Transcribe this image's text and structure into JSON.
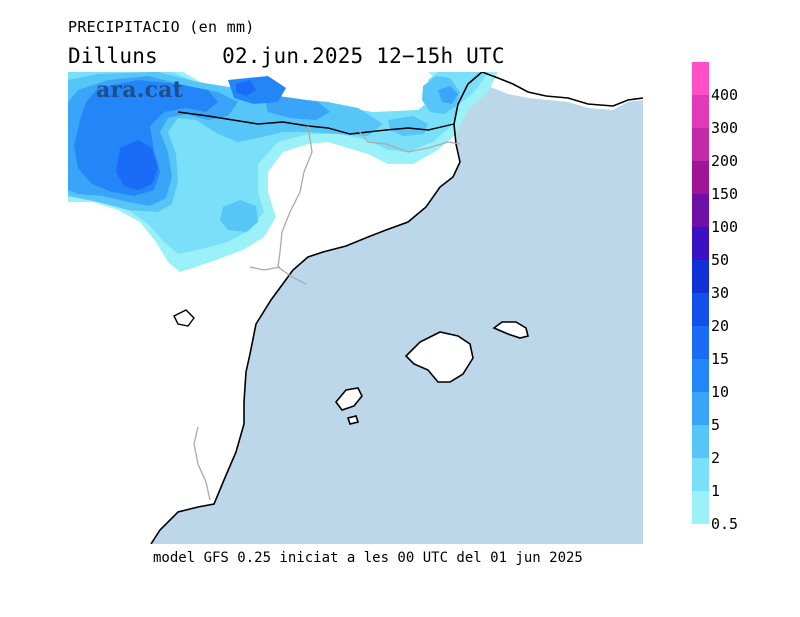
{
  "header": {
    "title": "PRECIPITACIO (en mm)",
    "day": "Dilluns",
    "date": "02.jun.2025",
    "time_range": "12−15h",
    "timezone": "UTC"
  },
  "brand": {
    "logo_text": "ara.cat"
  },
  "footer": {
    "model_info": "model GFS 0.25 iniciat a les 00 UTC del 01 jun 2025"
  },
  "legend": {
    "unit": "mm",
    "levels": [
      {
        "label": "400",
        "color": "#ff4fc7"
      },
      {
        "label": "300",
        "color": "#e03ab8"
      },
      {
        "label": "200",
        "color": "#c22aa8"
      },
      {
        "label": "150",
        "color": "#a01596"
      },
      {
        "label": "100",
        "color": "#6e10a8"
      },
      {
        "label": "50",
        "color": "#3a12c4"
      },
      {
        "label": "30",
        "color": "#1230d8"
      },
      {
        "label": "20",
        "color": "#1250ec"
      },
      {
        "label": "15",
        "color": "#1a6cf6"
      },
      {
        "label": "10",
        "color": "#2386f8"
      },
      {
        "label": "5",
        "color": "#3aa5f8"
      },
      {
        "label": "2",
        "color": "#56c6f8"
      },
      {
        "label": "1",
        "color": "#7adff8"
      },
      {
        "label": "0.5",
        "color": "#9af2f8"
      }
    ]
  },
  "map": {
    "sea_color": "#bcd7ea",
    "land_color": "#ffffff",
    "coastline_color": "#000000",
    "border_color": "#aaaaaa"
  }
}
